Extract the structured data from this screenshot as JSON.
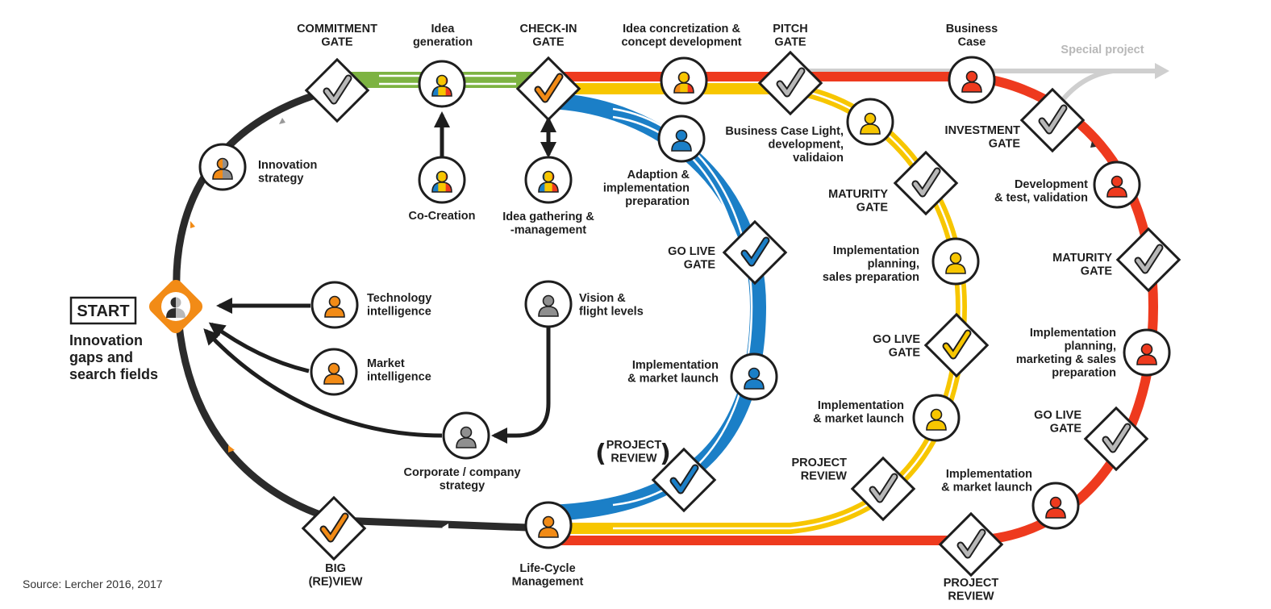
{
  "colors": {
    "black": "#2b2b2b",
    "green": "#7db342",
    "blue": "#1b7fc7",
    "yellow": "#f7c600",
    "red": "#ee3a1e",
    "orange": "#f28b16",
    "gray": "#b8b8b8",
    "person_gray": "#8f8f8f"
  },
  "start": {
    "box_label": "START",
    "caption": [
      "Innovation",
      "gaps and",
      "search fields"
    ]
  },
  "source": "Source: Lercher 2016, 2017",
  "special_project": "Special project",
  "gates": {
    "commitment": [
      "COMMITMENT",
      "GATE"
    ],
    "checkin": [
      "CHECK-IN",
      "GATE"
    ],
    "pitch": [
      "PITCH",
      "GATE"
    ],
    "blue_golive": [
      "GO LIVE",
      "GATE"
    ],
    "blue_review": [
      "PROJECT",
      "REVIEW"
    ],
    "yellow_maturity": [
      "MATURITY",
      "GATE"
    ],
    "yellow_golive": [
      "GO LIVE",
      "GATE"
    ],
    "yellow_review": [
      "PROJECT",
      "REVIEW"
    ],
    "investment": [
      "INVESTMENT",
      "GATE"
    ],
    "red_maturity": [
      "MATURITY",
      "GATE"
    ],
    "red_golive": [
      "GO LIVE",
      "GATE"
    ],
    "red_review": [
      "PROJECT",
      "REVIEW"
    ],
    "big_review": [
      "BIG",
      "(RE)VIEW"
    ]
  },
  "nodes": {
    "idea_generation": [
      "Idea",
      "generation"
    ],
    "co_creation": [
      "Co-Creation"
    ],
    "idea_gathering": [
      "Idea gathering &",
      "-management"
    ],
    "idea_concretization": [
      "Idea concretization &",
      "concept development"
    ],
    "business_case": [
      "Business",
      "Case"
    ],
    "business_case_light": [
      "Business Case Light,",
      "development,",
      "validaion"
    ],
    "adaption": [
      "Adaption &",
      "implementation",
      "preparation"
    ],
    "blue_launch": [
      "Implementation",
      "& market launch"
    ],
    "yellow_planning": [
      "Implementation",
      "planning,",
      "sales preparation"
    ],
    "yellow_launch": [
      "Implementation",
      "& market launch"
    ],
    "red_development": [
      "Development",
      "& test, validation"
    ],
    "red_planning": [
      "Implementation",
      "planning,",
      "marketing & sales",
      "preparation"
    ],
    "red_launch": [
      "Implementation",
      "& market launch"
    ],
    "innovation_strategy": [
      "Innovation",
      "strategy"
    ],
    "technology_intelligence": [
      "Technology",
      "intelligence"
    ],
    "market_intelligence": [
      "Market",
      "intelligence"
    ],
    "vision": [
      "Vision &",
      "flight levels"
    ],
    "corporate_strategy": [
      "Corporate / company",
      "strategy"
    ],
    "lifecycle": [
      "Life-Cycle",
      "Management"
    ]
  }
}
